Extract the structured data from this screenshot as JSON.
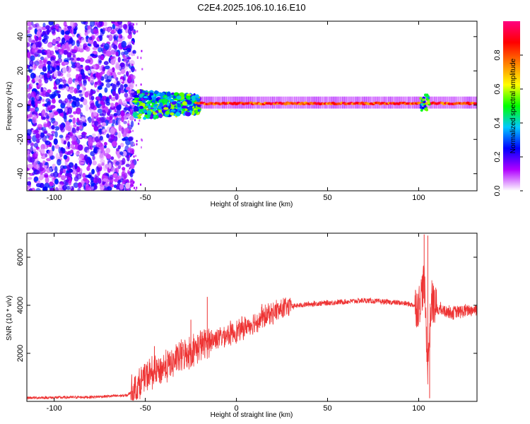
{
  "title": "C2E4.2025.106.10.16.E10",
  "chart_data": [
    {
      "type": "heatmap",
      "xlabel": "Height of straight line (km)",
      "ylabel": "Frequency (Hz)",
      "xlim": [
        -115,
        132
      ],
      "ylim": [
        -50,
        49
      ],
      "xticks": [
        -100,
        -50,
        0,
        50,
        100
      ],
      "yticks": [
        -40,
        -20,
        0,
        20,
        40
      ],
      "colorbar": {
        "label": "Normalized spectral amplitude",
        "range": [
          0,
          1
        ],
        "ticks": [
          "0.0",
          "0.2",
          "0.4",
          "0.6",
          "0.8"
        ],
        "colors": [
          "#ffffff",
          "#b000ff",
          "#0000ff",
          "#00c8ff",
          "#00ff00",
          "#ffff00",
          "#ff8000",
          "#ff0000",
          "#ff0080"
        ]
      },
      "regions": [
        {
          "x": [
            -115,
            -56
          ],
          "freq": [
            -50,
            49
          ],
          "level": 0.15,
          "kind": "noise"
        },
        {
          "x": [
            -56,
            -20
          ],
          "freq": [
            -10,
            7
          ],
          "level": 0.45,
          "kind": "broadband"
        },
        {
          "x": [
            -20,
            132
          ],
          "freq": [
            -1,
            3
          ],
          "level": 0.85,
          "kind": "carrier"
        },
        {
          "x": [
            101,
            106
          ],
          "freq": [
            -3,
            6
          ],
          "level": 0.5,
          "kind": "disturbance"
        }
      ]
    },
    {
      "type": "line",
      "xlabel": "Height of straight line (km)",
      "ylabel": "SNR (10 * v/v)",
      "xlim": [
        -115,
        132
      ],
      "ylim": [
        0,
        7000
      ],
      "xticks": [
        -100,
        -50,
        0,
        50,
        100
      ],
      "yticks": [
        2000,
        4000,
        6000
      ],
      "color": "#ee3333",
      "x": [
        -115,
        -100,
        -80,
        -60,
        -55,
        -50,
        -45,
        -40,
        -35,
        -30,
        -25,
        -20,
        -15,
        -10,
        -5,
        0,
        5,
        10,
        15,
        20,
        25,
        30,
        35,
        40,
        50,
        60,
        70,
        80,
        90,
        95,
        100,
        103,
        105,
        107,
        110,
        115,
        120,
        125,
        132
      ],
      "y": [
        150,
        160,
        180,
        250,
        550,
        1000,
        1200,
        1400,
        1600,
        1900,
        2100,
        2300,
        2500,
        2650,
        2800,
        2900,
        3100,
        3300,
        3500,
        3700,
        3850,
        3950,
        4000,
        4050,
        4100,
        4150,
        4200,
        4150,
        4100,
        4050,
        3950,
        5000,
        1500,
        4200,
        3850,
        3750,
        3700,
        3750,
        3850
      ],
      "spikes": [
        {
          "x": -16,
          "y": 4350
        },
        {
          "x": -25,
          "y": 3400
        },
        {
          "x": -45,
          "y": 2300
        },
        {
          "x": 14,
          "y": 4050
        },
        {
          "x": 103,
          "y": 6950
        },
        {
          "x": 105,
          "y": 6900
        },
        {
          "x": 106,
          "y": 130
        }
      ]
    }
  ]
}
